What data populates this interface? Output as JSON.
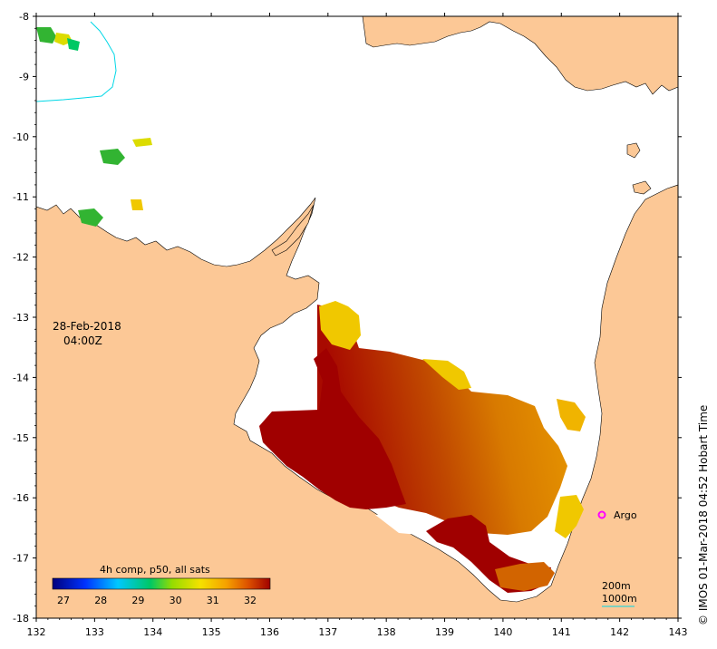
{
  "map": {
    "date": "28-Feb-2018",
    "time": "04:00Z",
    "credit": "© IMOS 01-Mar-2018 04:52 Hobart Time",
    "argo_label": "Argo",
    "contour_200m": "200m",
    "contour_1000m": "1000m",
    "x_ticks": [
      "132",
      "133",
      "134",
      "135",
      "136",
      "137",
      "138",
      "139",
      "140",
      "141",
      "142",
      "143"
    ],
    "y_ticks": [
      "-8",
      "-9",
      "-10",
      "-11",
      "-12",
      "-13",
      "-14",
      "-15",
      "-16",
      "-17",
      "-18"
    ],
    "colors": {
      "land": "#fcc896",
      "sst_hot": "#a00000",
      "sst_orange": "#d26400",
      "sst_yellow": "#f0c800",
      "sst_green": "#64c800",
      "contour_200m": "#00d7e6",
      "argo": "#ff00ff"
    }
  },
  "legend": {
    "title": "4h comp, p50, all sats",
    "labels": [
      "27",
      "28",
      "29",
      "30",
      "31",
      "32"
    ]
  }
}
